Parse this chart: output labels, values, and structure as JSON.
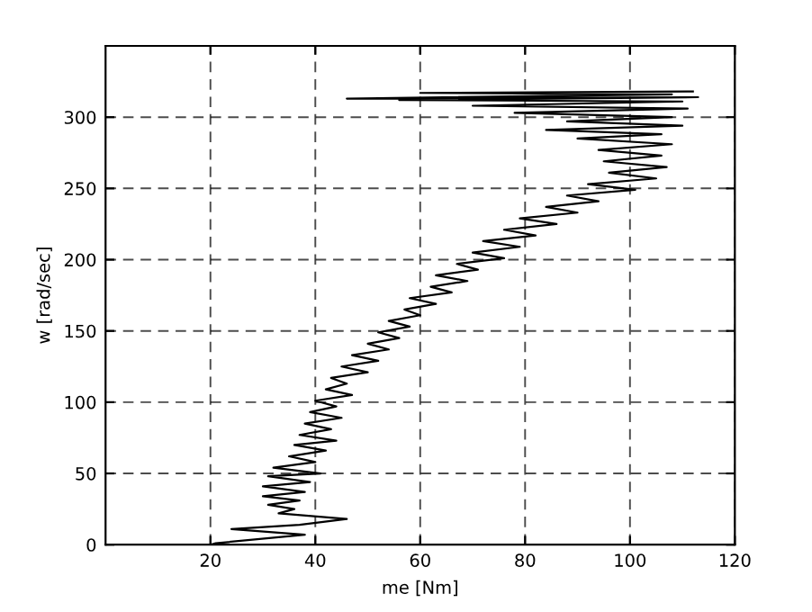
{
  "chart_data": {
    "type": "line",
    "xlabel": "me [Nm]",
    "ylabel": "w [rad/sec]",
    "x": [
      0,
      20,
      21,
      38,
      24,
      37,
      46,
      33,
      36,
      31,
      37,
      30,
      38,
      30,
      39,
      31,
      41,
      32,
      40,
      35,
      42,
      36,
      44,
      37,
      43,
      38,
      45,
      39,
      44,
      40,
      47,
      42,
      46,
      43,
      50,
      45,
      52,
      47,
      54,
      50,
      56,
      52,
      58,
      54,
      60,
      57,
      63,
      58,
      66,
      62,
      69,
      63,
      71,
      67,
      76,
      70,
      79,
      72,
      82,
      76,
      86,
      79,
      90,
      84,
      94,
      88,
      101,
      92,
      105,
      96,
      107,
      95,
      106,
      94,
      108,
      90,
      106,
      84,
      110,
      88,
      108,
      78,
      111,
      70,
      110,
      56,
      113,
      46,
      108,
      60,
      112
    ],
    "series": [
      {
        "color": "#000000",
        "values": [
          0,
          0,
          1,
          7,
          11,
          14,
          18,
          22,
          25,
          28,
          31,
          34,
          37,
          41,
          44,
          48,
          50,
          54,
          58,
          62,
          66,
          70,
          73,
          77,
          81,
          85,
          89,
          93,
          97,
          101,
          105,
          109,
          113,
          117,
          121,
          125,
          129,
          133,
          137,
          141,
          145,
          149,
          153,
          157,
          161,
          165,
          169,
          173,
          177,
          181,
          185,
          189,
          193,
          197,
          201,
          205,
          209,
          213,
          217,
          221,
          225,
          229,
          233,
          237,
          241,
          245,
          249,
          253,
          257,
          261,
          265,
          269,
          273,
          277,
          281,
          285,
          288,
          291,
          294,
          297,
          300,
          303,
          306,
          308,
          311,
          312,
          314,
          313,
          316,
          317,
          318
        ]
      }
    ],
    "xlim": [
      0,
      120
    ],
    "xticks": [
      20,
      40,
      60,
      80,
      100,
      120
    ],
    "ylim": [
      0,
      350
    ],
    "yticks": [
      0,
      50,
      100,
      150,
      200,
      250,
      300
    ],
    "grid": true,
    "line_style": "solid",
    "marker": "none",
    "legend": false
  }
}
